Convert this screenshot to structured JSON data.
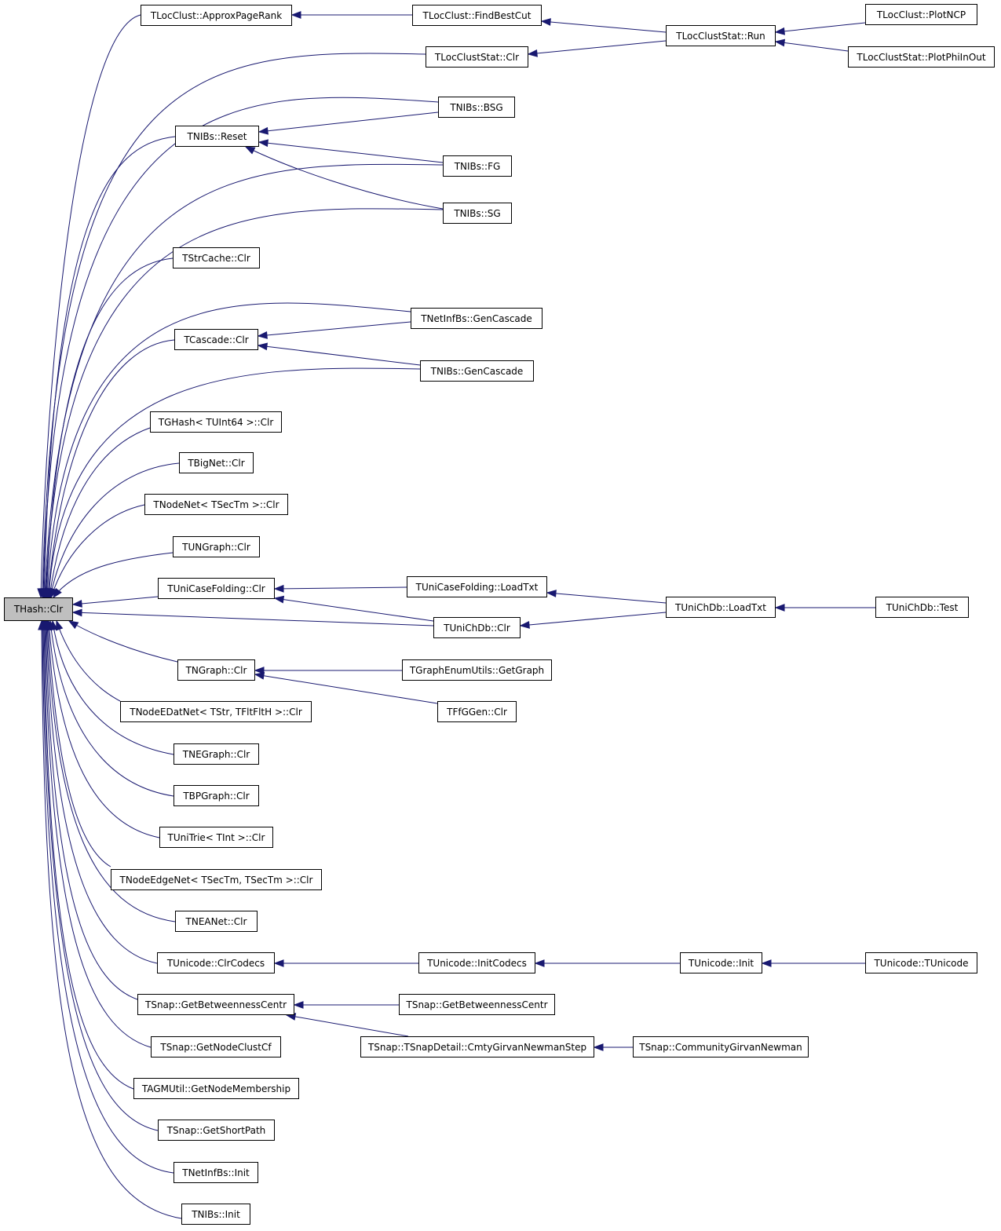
{
  "graph": {
    "edge_color": "#191970",
    "root_fill": "#bfbfbf",
    "nodes": [
      {
        "id": "root",
        "label": "THash::Clr",
        "root": true
      },
      {
        "id": "approxpr",
        "label": "TLocClust::ApproxPageRank"
      },
      {
        "id": "findbestcut",
        "label": "TLocClust::FindBestCut"
      },
      {
        "id": "lcsrun",
        "label": "TLocClustStat::Run"
      },
      {
        "id": "plotncp",
        "label": "TLocClust::PlotNCP"
      },
      {
        "id": "plotphi",
        "label": "TLocClustStat::PlotPhiInOut"
      },
      {
        "id": "lcsclr",
        "label": "TLocClustStat::Clr"
      },
      {
        "id": "bsg",
        "label": "TNIBs::BSG"
      },
      {
        "id": "reset",
        "label": "TNIBs::Reset"
      },
      {
        "id": "fg",
        "label": "TNIBs::FG"
      },
      {
        "id": "sg",
        "label": "TNIBs::SG"
      },
      {
        "id": "strcache",
        "label": "TStrCache::Clr"
      },
      {
        "id": "netinfgen",
        "label": "TNetInfBs::GenCascade"
      },
      {
        "id": "cascade",
        "label": "TCascade::Clr"
      },
      {
        "id": "nibsgen",
        "label": "TNIBs::GenCascade"
      },
      {
        "id": "ghash",
        "label": "TGHash< TUInt64 >::Clr"
      },
      {
        "id": "bignet",
        "label": "TBigNet::Clr"
      },
      {
        "id": "nodenet",
        "label": "TNodeNet< TSecTm >::Clr"
      },
      {
        "id": "ungraph",
        "label": "TUNGraph::Clr"
      },
      {
        "id": "unicf",
        "label": "TUniCaseFolding::Clr"
      },
      {
        "id": "unicfload",
        "label": "TUniCaseFolding::LoadTxt"
      },
      {
        "id": "unichdbload",
        "label": "TUniChDb::LoadTxt"
      },
      {
        "id": "unichdbtest",
        "label": "TUniChDb::Test"
      },
      {
        "id": "unichdbclr",
        "label": "TUniChDb::Clr"
      },
      {
        "id": "ngraph",
        "label": "TNGraph::Clr"
      },
      {
        "id": "getgraph",
        "label": "TGraphEnumUtils::GetGraph"
      },
      {
        "id": "nedat",
        "label": "TNodeEDatNet< TStr, TFltFltH >::Clr"
      },
      {
        "id": "ffggen",
        "label": "TFfGGen::Clr"
      },
      {
        "id": "negraph",
        "label": "TNEGraph::Clr"
      },
      {
        "id": "bpgraph",
        "label": "TBPGraph::Clr"
      },
      {
        "id": "unitrie",
        "label": "TUniTrie< TInt >::Clr"
      },
      {
        "id": "nodeedge",
        "label": "TNodeEdgeNet< TSecTm, TSecTm >::Clr"
      },
      {
        "id": "neanet",
        "label": "TNEANet::Clr"
      },
      {
        "id": "uclrcodecs",
        "label": "TUnicode::ClrCodecs"
      },
      {
        "id": "uinitcodecs",
        "label": "TUnicode::InitCodecs"
      },
      {
        "id": "uinit",
        "label": "TUnicode::Init"
      },
      {
        "id": "uctor",
        "label": "TUnicode::TUnicode"
      },
      {
        "id": "getbtw1",
        "label": "TSnap::GetBetweennessCentr"
      },
      {
        "id": "getbtw2",
        "label": "TSnap::GetBetweennessCentr"
      },
      {
        "id": "cmtystep",
        "label": "TSnap::TSnapDetail::CmtyGirvanNewmanStep"
      },
      {
        "id": "cmtygn",
        "label": "TSnap::CommunityGirvanNewman"
      },
      {
        "id": "nodeclust",
        "label": "TSnap::GetNodeClustCf"
      },
      {
        "id": "agm",
        "label": "TAGMUtil::GetNodeMembership"
      },
      {
        "id": "shortpath",
        "label": "TSnap::GetShortPath"
      },
      {
        "id": "netinfinit",
        "label": "TNetInfBs::Init"
      },
      {
        "id": "nibsinit",
        "label": "TNIBs::Init"
      }
    ],
    "edges": [
      {
        "from": "approxpr",
        "to": "root"
      },
      {
        "from": "findbestcut",
        "to": "approxpr"
      },
      {
        "from": "lcsrun",
        "to": "findbestcut"
      },
      {
        "from": "plotncp",
        "to": "lcsrun"
      },
      {
        "from": "plotphi",
        "to": "lcsrun"
      },
      {
        "from": "lcsclr",
        "to": "root"
      },
      {
        "from": "lcsrun",
        "to": "lcsclr"
      },
      {
        "from": "bsg",
        "to": "root"
      },
      {
        "from": "reset",
        "to": "root"
      },
      {
        "from": "bsg",
        "to": "reset"
      },
      {
        "from": "fg",
        "to": "reset"
      },
      {
        "from": "sg",
        "to": "reset"
      },
      {
        "from": "fg",
        "to": "root"
      },
      {
        "from": "sg",
        "to": "root"
      },
      {
        "from": "strcache",
        "to": "root"
      },
      {
        "from": "netinfgen",
        "to": "root"
      },
      {
        "from": "cascade",
        "to": "root"
      },
      {
        "from": "netinfgen",
        "to": "cascade"
      },
      {
        "from": "nibsgen",
        "to": "cascade"
      },
      {
        "from": "nibsgen",
        "to": "root"
      },
      {
        "from": "ghash",
        "to": "root"
      },
      {
        "from": "bignet",
        "to": "root"
      },
      {
        "from": "nodenet",
        "to": "root"
      },
      {
        "from": "ungraph",
        "to": "root"
      },
      {
        "from": "unicf",
        "to": "root"
      },
      {
        "from": "unicfload",
        "to": "unicf"
      },
      {
        "from": "unichdbclr",
        "to": "unicf"
      },
      {
        "from": "unichdbload",
        "to": "unicfload"
      },
      {
        "from": "unichdbload",
        "to": "unichdbclr"
      },
      {
        "from": "unichdbtest",
        "to": "unichdbload"
      },
      {
        "from": "unichdbclr",
        "to": "root"
      },
      {
        "from": "ngraph",
        "to": "root"
      },
      {
        "from": "getgraph",
        "to": "ngraph"
      },
      {
        "from": "ffggen",
        "to": "ngraph"
      },
      {
        "from": "nedat",
        "to": "root"
      },
      {
        "from": "negraph",
        "to": "root"
      },
      {
        "from": "bpgraph",
        "to": "root"
      },
      {
        "from": "unitrie",
        "to": "root"
      },
      {
        "from": "nodeedge",
        "to": "root"
      },
      {
        "from": "neanet",
        "to": "root"
      },
      {
        "from": "uclrcodecs",
        "to": "root"
      },
      {
        "from": "uinitcodecs",
        "to": "uclrcodecs"
      },
      {
        "from": "uinit",
        "to": "uinitcodecs"
      },
      {
        "from": "uctor",
        "to": "uinit"
      },
      {
        "from": "getbtw1",
        "to": "root"
      },
      {
        "from": "getbtw2",
        "to": "getbtw1"
      },
      {
        "from": "cmtystep",
        "to": "getbtw1"
      },
      {
        "from": "cmtygn",
        "to": "cmtystep"
      },
      {
        "from": "nodeclust",
        "to": "root"
      },
      {
        "from": "agm",
        "to": "root"
      },
      {
        "from": "shortpath",
        "to": "root"
      },
      {
        "from": "netinfinit",
        "to": "root"
      },
      {
        "from": "nibsinit",
        "to": "root"
      }
    ]
  }
}
